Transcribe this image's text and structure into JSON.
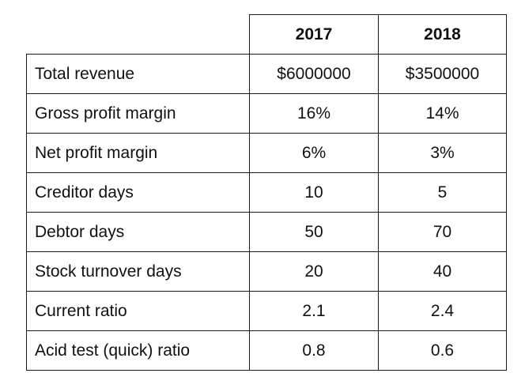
{
  "table": {
    "headers": [
      "2017",
      "2018"
    ],
    "rows": [
      {
        "label": "Total revenue",
        "v2017": "$6000000",
        "v2018": "$3500000"
      },
      {
        "label": "Gross profit margin",
        "v2017": "16%",
        "v2018": "14%"
      },
      {
        "label": "Net profit margin",
        "v2017": "6%",
        "v2018": "3%"
      },
      {
        "label": "Creditor days",
        "v2017": "10",
        "v2018": "5"
      },
      {
        "label": "Debtor days",
        "v2017": "50",
        "v2018": "70"
      },
      {
        "label": "Stock turnover days",
        "v2017": "20",
        "v2018": "40"
      },
      {
        "label": "Current ratio",
        "v2017": "2.1",
        "v2018": "2.4"
      },
      {
        "label": "Acid test (quick) ratio",
        "v2017": "0.8",
        "v2018": "0.6"
      }
    ]
  }
}
